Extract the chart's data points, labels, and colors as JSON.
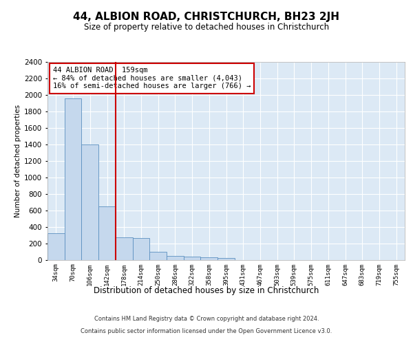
{
  "title": "44, ALBION ROAD, CHRISTCHURCH, BH23 2JH",
  "subtitle": "Size of property relative to detached houses in Christchurch",
  "xlabel": "Distribution of detached houses by size in Christchurch",
  "ylabel": "Number of detached properties",
  "bar_color": "#c5d8ed",
  "bar_edge_color": "#5a8fc0",
  "background_color": "#dce9f5",
  "grid_color": "#ffffff",
  "categories": [
    "34sqm",
    "70sqm",
    "106sqm",
    "142sqm",
    "178sqm",
    "214sqm",
    "250sqm",
    "286sqm",
    "322sqm",
    "358sqm",
    "395sqm",
    "431sqm",
    "467sqm",
    "503sqm",
    "539sqm",
    "575sqm",
    "611sqm",
    "647sqm",
    "683sqm",
    "719sqm",
    "755sqm"
  ],
  "values": [
    325,
    1960,
    1400,
    645,
    270,
    265,
    100,
    50,
    40,
    30,
    20,
    0,
    0,
    0,
    0,
    0,
    0,
    0,
    0,
    0,
    0
  ],
  "ylim": [
    0,
    2400
  ],
  "yticks": [
    0,
    200,
    400,
    600,
    800,
    1000,
    1200,
    1400,
    1600,
    1800,
    2000,
    2200,
    2400
  ],
  "vline_x": 3.5,
  "vline_color": "#cc0000",
  "annotation_text": "44 ALBION ROAD: 159sqm\n← 84% of detached houses are smaller (4,043)\n16% of semi-detached houses are larger (766) →",
  "annotation_box_color": "#ffffff",
  "annotation_box_edge_color": "#cc0000",
  "footer_line1": "Contains HM Land Registry data © Crown copyright and database right 2024.",
  "footer_line2": "Contains public sector information licensed under the Open Government Licence v3.0."
}
